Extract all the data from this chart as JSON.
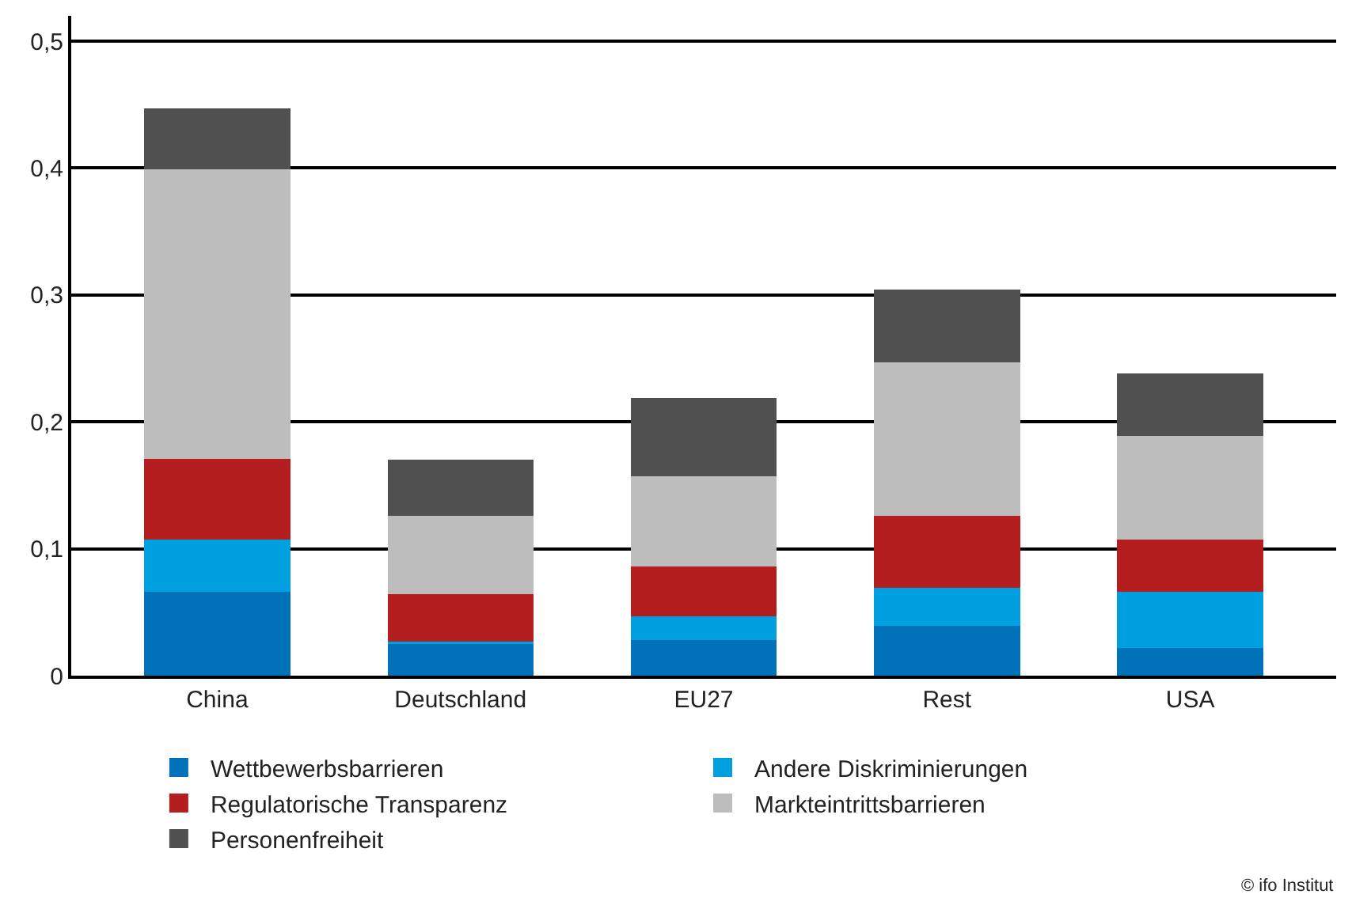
{
  "chart_data": {
    "type": "bar",
    "stacked": true,
    "categories": [
      "China",
      "Deutschland",
      "EU27",
      "Rest",
      "USA"
    ],
    "series": [
      {
        "name": "Wettbewerbsbarrieren",
        "color": "#0072b9",
        "values": [
          0.066,
          0.025,
          0.028,
          0.039,
          0.022
        ]
      },
      {
        "name": "Andere Diskriminierungen",
        "color": "#009fe0",
        "values": [
          0.041,
          0.002,
          0.019,
          0.03,
          0.044
        ]
      },
      {
        "name": "Regulatorische Transparenz",
        "color": "#b41e1e",
        "values": [
          0.064,
          0.037,
          0.039,
          0.057,
          0.041
        ]
      },
      {
        "name": "Markteintrittsbarrieren",
        "color": "#bdbdbd",
        "values": [
          0.228,
          0.062,
          0.071,
          0.121,
          0.082
        ]
      },
      {
        "name": "Personenfreiheit",
        "color": "#505050",
        "values": [
          0.048,
          0.044,
          0.062,
          0.057,
          0.049
        ]
      }
    ],
    "ylim": [
      0,
      0.52
    ],
    "yticks": [
      0,
      {
        "value": 0.1,
        "label": "0,1"
      },
      {
        "value": 0.2,
        "label": "0,2"
      },
      {
        "value": 0.3,
        "label": "0,3"
      },
      {
        "value": 0.4,
        "label": "0,4"
      },
      {
        "value": 0.5,
        "label": "0,5"
      }
    ],
    "grid": "y",
    "legend": "bottom",
    "annotations": [
      "© ifo Institut"
    ]
  }
}
